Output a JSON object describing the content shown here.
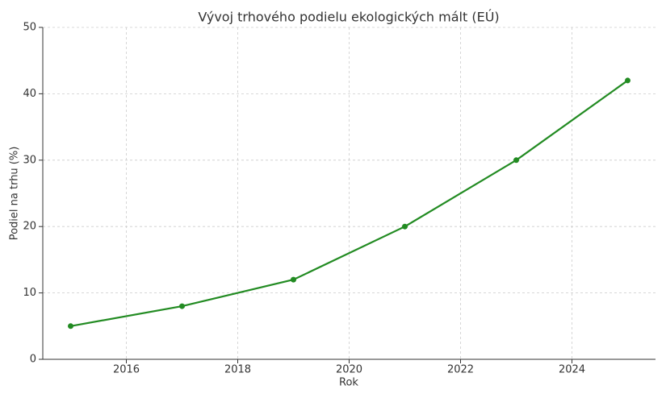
{
  "chart_data": {
    "type": "line",
    "title": "Vývoj trhového podielu ekologických mált (EÚ)",
    "xlabel": "Rok",
    "ylabel": "Podiel na trhu (%)",
    "x": [
      2015,
      2017,
      2019,
      2021,
      2023,
      2025
    ],
    "series": [
      {
        "name": "Podiel na trhu",
        "color": "#228b22",
        "values": [
          5,
          8,
          12,
          20,
          30,
          42
        ]
      }
    ],
    "xlim": [
      2014.5,
      2025.5
    ],
    "xticks": [
      2016,
      2018,
      2020,
      2022,
      2024
    ],
    "ylim": [
      0,
      50
    ],
    "yticks": [
      0,
      10,
      20,
      30,
      40,
      50
    ],
    "grid": true
  }
}
